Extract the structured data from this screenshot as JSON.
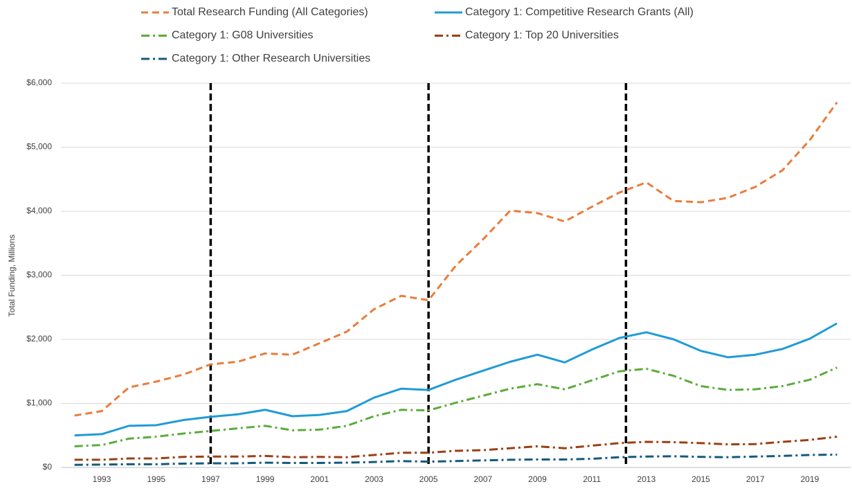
{
  "chart_data": {
    "type": "line",
    "y_label": "Total Funding, Millions",
    "x": [
      1992,
      1993,
      1994,
      1995,
      1996,
      1997,
      1998,
      1999,
      2000,
      2001,
      2002,
      2003,
      2004,
      2005,
      2006,
      2007,
      2008,
      2009,
      2010,
      2011,
      2012,
      2013,
      2014,
      2015,
      2016,
      2017,
      2018,
      2019,
      2020
    ],
    "xlim": [
      1991.5,
      2020.5
    ],
    "xticks": [
      1993,
      1995,
      1997,
      1999,
      2001,
      2003,
      2005,
      2007,
      2009,
      2011,
      2013,
      2015,
      2017,
      2019
    ],
    "ylim": [
      0,
      6000
    ],
    "yticks": [
      {
        "value": 0,
        "label": "$0"
      },
      {
        "value": 1000,
        "label": "$1,000"
      },
      {
        "value": 2000,
        "label": "$2,000"
      },
      {
        "value": 3000,
        "label": "$3,000"
      },
      {
        "value": 4000,
        "label": "$4,000"
      },
      {
        "value": 5000,
        "label": "$5,000"
      },
      {
        "value": 6000,
        "label": "$6,000"
      }
    ],
    "grid": true,
    "legend": "top",
    "vlines": [
      1997,
      2005,
      2012.25
    ],
    "series": [
      {
        "name": "Total Research Funding (All Categories)",
        "color": "#e97c3a",
        "dash": "10 6",
        "values": [
          810,
          880,
          1250,
          1340,
          1450,
          1610,
          1650,
          1780,
          1760,
          1940,
          2120,
          2470,
          2680,
          2610,
          3150,
          3560,
          4010,
          3970,
          3840,
          4070,
          4290,
          4450,
          4160,
          4140,
          4210,
          4380,
          4640,
          5110,
          5700
        ]
      },
      {
        "name": "Category 1: Competitive Research Grants (All)",
        "color": "#1f9bd7",
        "dash": "none",
        "values": [
          500,
          520,
          650,
          660,
          740,
          790,
          830,
          900,
          800,
          820,
          880,
          1090,
          1230,
          1210,
          1370,
          1510,
          1650,
          1760,
          1640,
          1840,
          2020,
          2110,
          2000,
          1820,
          1720,
          1760,
          1850,
          2010,
          2250
        ]
      },
      {
        "name": "Category 1: G08 Universities",
        "color": "#5aac3a",
        "dash": "12 5 3 5",
        "values": [
          330,
          350,
          450,
          480,
          530,
          570,
          610,
          650,
          580,
          590,
          650,
          800,
          900,
          890,
          1010,
          1120,
          1230,
          1300,
          1220,
          1360,
          1500,
          1540,
          1430,
          1270,
          1210,
          1220,
          1270,
          1370,
          1560
        ]
      },
      {
        "name": "Category 1: Top 20 Universities",
        "color": "#9c3f12",
        "dash": "12 5 3 5",
        "values": [
          120,
          120,
          140,
          140,
          165,
          170,
          170,
          180,
          160,
          165,
          160,
          195,
          230,
          230,
          260,
          270,
          300,
          330,
          300,
          340,
          380,
          400,
          395,
          380,
          360,
          365,
          400,
          430,
          480
        ]
      },
      {
        "name": "Category 1: Other Research Universities",
        "color": "#145a7a",
        "dash": "12 5 3 5",
        "values": [
          40,
          45,
          50,
          50,
          60,
          65,
          65,
          75,
          70,
          70,
          75,
          85,
          100,
          90,
          100,
          110,
          120,
          125,
          125,
          135,
          160,
          170,
          175,
          165,
          160,
          170,
          180,
          195,
          200
        ]
      }
    ]
  }
}
